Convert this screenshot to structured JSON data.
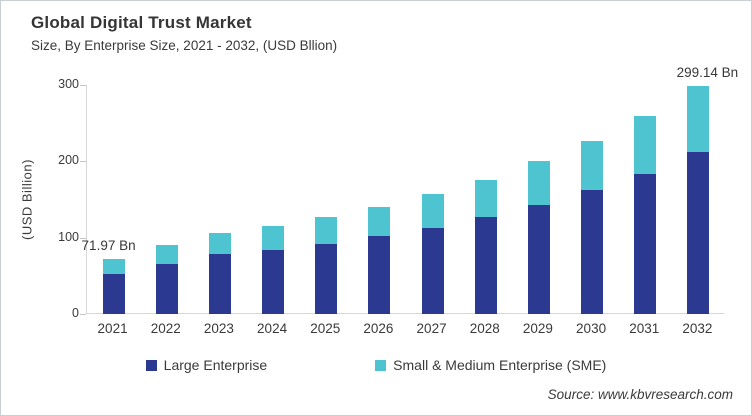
{
  "header": {
    "title": "Global Digital Trust Market",
    "subtitle": "Size, By Enterprise Size, 2021 - 2032, (USD Bllion)"
  },
  "legend": [
    {
      "label": "Large Enterprise",
      "color": "#2B3990"
    },
    {
      "label": "Small & Medium Enterprise (SME)",
      "color": "#4FC4D1"
    }
  ],
  "footer": {
    "source": "Source: www.kbvresearch.com"
  },
  "chart_data": {
    "type": "bar",
    "stacked": true,
    "title": "Global Digital Trust Market",
    "subtitle": "Size, By Enterprise Size, 2021 - 2032, (USD Bllion)",
    "xlabel": "",
    "ylabel": "(USD Billion)",
    "ylim": [
      0,
      300
    ],
    "yticks": [
      0,
      100,
      200,
      300
    ],
    "grid": false,
    "legend_position": "bottom",
    "categories": [
      "2021",
      "2022",
      "2023",
      "2024",
      "2025",
      "2026",
      "2027",
      "2028",
      "2029",
      "2030",
      "2031",
      "2032"
    ],
    "series": [
      {
        "name": "Large Enterprise",
        "color": "#2B3990",
        "values": [
          52,
          65,
          78,
          84,
          92,
          102,
          113,
          127,
          143,
          163,
          184,
          212
        ]
      },
      {
        "name": "Small & Medium Enterprise (SME)",
        "color": "#4FC4D1",
        "values": [
          19.97,
          25,
          28,
          31,
          35,
          38,
          44,
          49,
          57,
          64,
          75,
          87.14
        ]
      }
    ],
    "totals": [
      71.97,
      90,
      106,
      115,
      127,
      140,
      157,
      176,
      200,
      227,
      259,
      299.14
    ],
    "annotations": [
      {
        "category": "2021",
        "text": "71.97 Bn"
      },
      {
        "category": "2032",
        "text": "299.14 Bn"
      }
    ]
  }
}
